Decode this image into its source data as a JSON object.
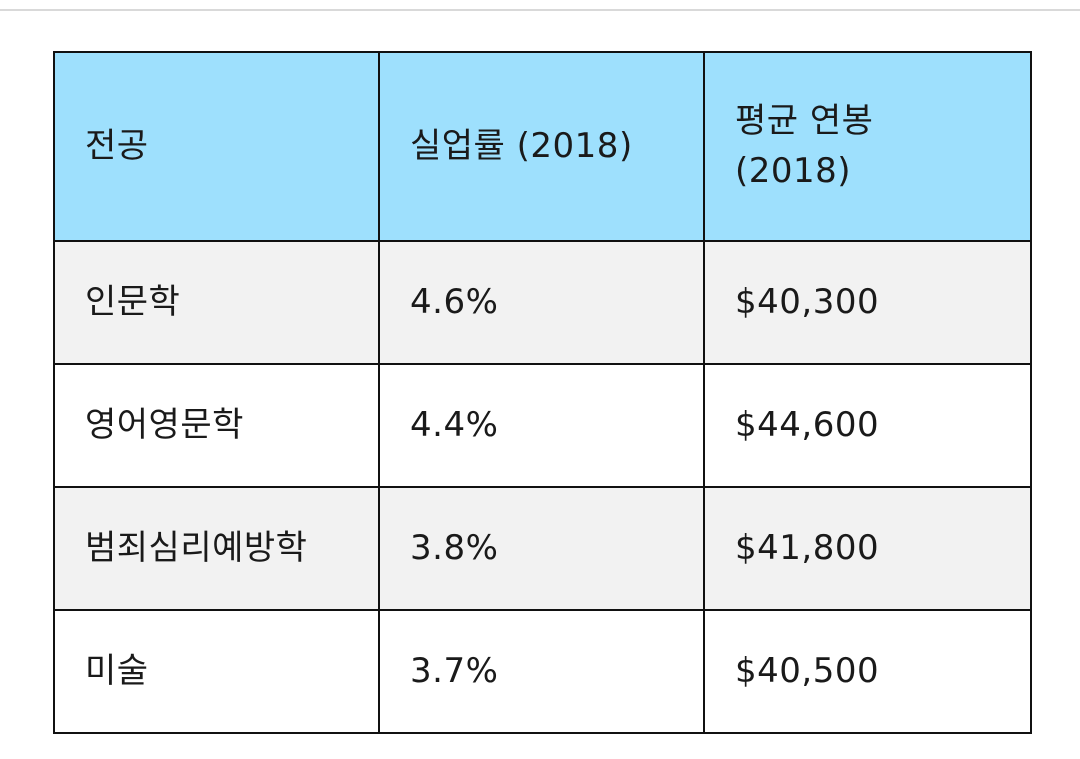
{
  "table": {
    "headers": [
      "전공",
      "실업률 (2018)",
      "평균 연봉 (2018)"
    ],
    "rows": [
      [
        "인문학",
        "4.6%",
        "$40,300"
      ],
      [
        "영어영문학",
        "4.4%",
        "$44,600"
      ],
      [
        "범죄심리예방학",
        "3.8%",
        "$41,800"
      ],
      [
        "미술",
        "3.7%",
        "$40,500"
      ]
    ]
  },
  "colors": {
    "header_bg": "#9ee0fd",
    "shaded_row_bg": "#f2f2f2",
    "border": "#111111"
  }
}
